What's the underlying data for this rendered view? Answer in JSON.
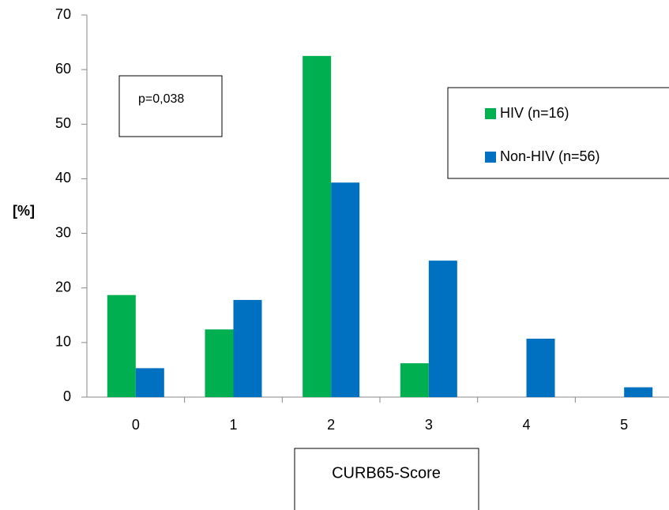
{
  "chart_data": {
    "type": "bar",
    "annotation": "p=0,038",
    "y_label": "[%]",
    "x_label": "CURB65-Score",
    "categories": [
      "0",
      "1",
      "2",
      "3",
      "4",
      "5"
    ],
    "series": [
      {
        "name": "HIV (n=16)",
        "color": "#00b050",
        "values": [
          18.7,
          12.4,
          62.5,
          6.2,
          0,
          0
        ]
      },
      {
        "name": "Non-HIV (n=56)",
        "color": "#0070c0",
        "values": [
          5.3,
          17.8,
          39.3,
          25,
          10.7,
          1.8
        ]
      }
    ],
    "ylim": [
      0,
      70
    ],
    "yticks": [
      0,
      10,
      20,
      30,
      40,
      50,
      60,
      70
    ],
    "grid": false,
    "legend": "top-right"
  }
}
